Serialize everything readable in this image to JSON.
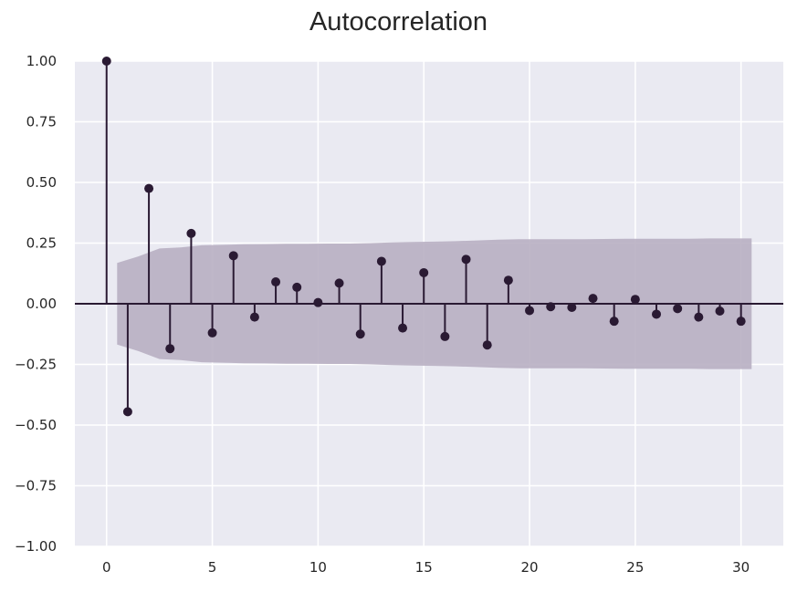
{
  "chart_data": {
    "type": "stem",
    "title": "Autocorrelation",
    "xlabel": "",
    "ylabel": "",
    "xlim": [
      -1.5,
      32
    ],
    "ylim": [
      -1.0,
      1.0
    ],
    "x_ticks": [
      0,
      5,
      10,
      15,
      20,
      25,
      30
    ],
    "y_ticks": [
      1.0,
      0.75,
      0.5,
      0.25,
      0.0,
      -0.25,
      -0.5,
      -0.75,
      -1.0
    ],
    "x_tick_labels": [
      "0",
      "5",
      "10",
      "15",
      "20",
      "25",
      "30"
    ],
    "y_tick_labels": [
      "1.00",
      "0.75",
      "0.50",
      "0.25",
      "0.00",
      "−0.25",
      "−0.50",
      "−0.75",
      "−1.00"
    ],
    "grid": true,
    "lags": [
      0,
      1,
      2,
      3,
      4,
      5,
      6,
      7,
      8,
      9,
      10,
      11,
      12,
      13,
      14,
      15,
      16,
      17,
      18,
      19,
      20,
      21,
      22,
      23,
      24,
      25,
      26,
      27,
      28,
      29,
      30
    ],
    "values": [
      1.0,
      -0.445,
      0.475,
      -0.185,
      0.29,
      -0.12,
      0.198,
      -0.055,
      0.09,
      0.068,
      0.005,
      0.085,
      -0.125,
      0.175,
      -0.1,
      0.128,
      -0.135,
      0.183,
      -0.17,
      0.097,
      -0.028,
      -0.012,
      -0.015,
      0.022,
      -0.072,
      0.018,
      -0.043,
      -0.02,
      -0.055,
      -0.03,
      -0.072
    ],
    "confidence_band": {
      "x": [
        0.5,
        1.5,
        2.5,
        3.5,
        4.5,
        5.5,
        6.5,
        7.5,
        8.5,
        9.5,
        10.5,
        11.5,
        12.5,
        13.5,
        14.5,
        15.5,
        16.5,
        17.5,
        18.5,
        19.5,
        20.5,
        21.5,
        22.5,
        23.5,
        24.5,
        25.5,
        26.5,
        27.5,
        28.5,
        29.5,
        30.5
      ],
      "upper": [
        0.168,
        0.195,
        0.228,
        0.232,
        0.241,
        0.243,
        0.245,
        0.246,
        0.247,
        0.247,
        0.248,
        0.248,
        0.25,
        0.253,
        0.255,
        0.256,
        0.258,
        0.261,
        0.264,
        0.266,
        0.266,
        0.266,
        0.266,
        0.267,
        0.268,
        0.268,
        0.268,
        0.268,
        0.269,
        0.269,
        0.269
      ]
    },
    "colors": {
      "background": "#eaeaf2",
      "grid": "#ffffff",
      "stem": "#2a1a33",
      "band": "#b8afc2",
      "text": "#262626"
    }
  }
}
